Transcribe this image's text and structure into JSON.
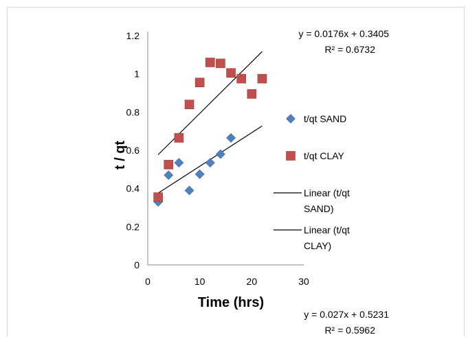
{
  "chart_data": {
    "type": "scatter",
    "xlabel": "Time (hrs)",
    "ylabel": "t / qt",
    "xlim": [
      0,
      30
    ],
    "ylim": [
      0,
      1.2
    ],
    "x_ticks": [
      "0",
      "10",
      "20",
      "30"
    ],
    "y_ticks": [
      "0",
      "0.2",
      "0.4",
      "0.6",
      "0.8",
      "1",
      "1.2"
    ],
    "grid": false,
    "legend_position": "right",
    "series": [
      {
        "name": "t/qt SAND",
        "marker": "diamond",
        "color": "#4f81bd",
        "points": [
          [
            2,
            0.33
          ],
          [
            4,
            0.47
          ],
          [
            6,
            0.535
          ],
          [
            8,
            0.39
          ],
          [
            10,
            0.475
          ],
          [
            12,
            0.535
          ],
          [
            14,
            0.58
          ],
          [
            16,
            0.665
          ]
        ]
      },
      {
        "name": "t/qt CLAY",
        "marker": "square",
        "color": "#c0504d",
        "points": [
          [
            2,
            0.355
          ],
          [
            4,
            0.525
          ],
          [
            6,
            0.665
          ],
          [
            8,
            0.84
          ],
          [
            10,
            0.955
          ],
          [
            12,
            1.06
          ],
          [
            14,
            1.055
          ],
          [
            16,
            1.005
          ],
          [
            18,
            0.975
          ],
          [
            20,
            0.895
          ],
          [
            22,
            0.975
          ]
        ]
      }
    ],
    "trendlines": [
      {
        "name": "Linear (t/qt SAND)",
        "name_lines": [
          "Linear (t/qt",
          "SAND)"
        ],
        "slope": 0.0176,
        "intercept": 0.3405,
        "x_range": [
          2,
          22
        ],
        "equation": "y = 0.0176x + 0.3405",
        "r2": "R² = 0.6732",
        "color": "#000000"
      },
      {
        "name": "Linear (t/qt CLAY)",
        "name_lines": [
          "Linear (t/qt",
          "CLAY)"
        ],
        "slope": 0.027,
        "intercept": 0.5231,
        "x_range": [
          2,
          22
        ],
        "equation": "y = 0.027x + 0.5231",
        "r2": "R² = 0.5962",
        "color": "#000000"
      }
    ]
  }
}
